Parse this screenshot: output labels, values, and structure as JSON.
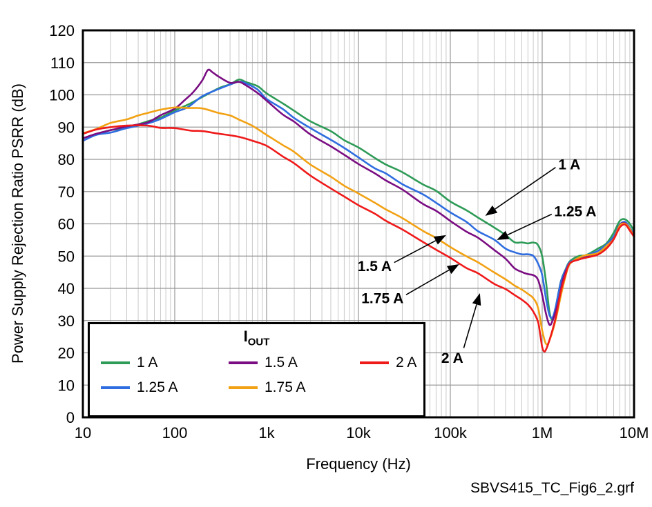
{
  "figure": {
    "caption": "SBVS415_TC_Fig6_2.grf"
  },
  "chart_data": {
    "type": "line",
    "title": "",
    "xlabel": "Frequency (Hz)",
    "ylabel": "Power Supply Rejection Ratio PSRR (dB)",
    "x_scale": "log",
    "xlim": [
      10,
      10000000
    ],
    "ylim": [
      0,
      120
    ],
    "grid": {
      "major": true,
      "minor_x": true
    },
    "x_ticks": [
      {
        "v": 10,
        "label": "10"
      },
      {
        "v": 100,
        "label": "100"
      },
      {
        "v": 1000,
        "label": "1k"
      },
      {
        "v": 10000,
        "label": "10k"
      },
      {
        "v": 100000,
        "label": "100k"
      },
      {
        "v": 1000000,
        "label": "1M"
      },
      {
        "v": 10000000,
        "label": "10M"
      }
    ],
    "y_ticks": {
      "min": 0,
      "max": 120,
      "step": 10
    },
    "legend": {
      "title_main": "I",
      "title_sub": "OUT",
      "position": "bottom-left",
      "order": [
        0,
        2,
        4,
        1,
        3
      ]
    },
    "series": [
      {
        "name": "1 A",
        "color": "#2e9b57",
        "points": [
          [
            10,
            86.5
          ],
          [
            14,
            88
          ],
          [
            20,
            89
          ],
          [
            30,
            90
          ],
          [
            50,
            91.5
          ],
          [
            70,
            93
          ],
          [
            100,
            95
          ],
          [
            140,
            97
          ],
          [
            200,
            99.5
          ],
          [
            300,
            102
          ],
          [
            400,
            103.5
          ],
          [
            500,
            104.5
          ],
          [
            600,
            104
          ],
          [
            800,
            102.5
          ],
          [
            1000,
            100.5
          ],
          [
            1500,
            97.5
          ],
          [
            2000,
            95
          ],
          [
            3000,
            92
          ],
          [
            5000,
            88.5
          ],
          [
            7000,
            86
          ],
          [
            10000,
            83.5
          ],
          [
            15000,
            80.5
          ],
          [
            20000,
            78.5
          ],
          [
            30000,
            76
          ],
          [
            50000,
            72.5
          ],
          [
            70000,
            70
          ],
          [
            100000,
            67
          ],
          [
            150000,
            64
          ],
          [
            200000,
            62
          ],
          [
            300000,
            59
          ],
          [
            400000,
            56.5
          ],
          [
            500000,
            54.5
          ],
          [
            600000,
            54
          ],
          [
            700000,
            54
          ],
          [
            800000,
            54
          ],
          [
            900000,
            53.5
          ],
          [
            1000000,
            50
          ],
          [
            1100000,
            42
          ],
          [
            1200000,
            33
          ],
          [
            1300000,
            30
          ],
          [
            1400000,
            34
          ],
          [
            1600000,
            42
          ],
          [
            1800000,
            46
          ],
          [
            2000000,
            48.5
          ],
          [
            2500000,
            50
          ],
          [
            3000000,
            50.5
          ],
          [
            4000000,
            52
          ],
          [
            5000000,
            54
          ],
          [
            6000000,
            57
          ],
          [
            7000000,
            61
          ],
          [
            8000000,
            61.5
          ],
          [
            9000000,
            60
          ],
          [
            10000000,
            58
          ]
        ]
      },
      {
        "name": "1.25 A",
        "color": "#2f6de0",
        "points": [
          [
            10,
            86
          ],
          [
            14,
            87.5
          ],
          [
            20,
            88.5
          ],
          [
            30,
            89.5
          ],
          [
            50,
            91
          ],
          [
            70,
            92.5
          ],
          [
            100,
            94.5
          ],
          [
            140,
            96.5
          ],
          [
            200,
            99.5
          ],
          [
            300,
            102
          ],
          [
            400,
            103
          ],
          [
            500,
            104
          ],
          [
            600,
            103.5
          ],
          [
            800,
            101.5
          ],
          [
            1000,
            99
          ],
          [
            1500,
            95.5
          ],
          [
            2000,
            93
          ],
          [
            3000,
            89.5
          ],
          [
            5000,
            86
          ],
          [
            7000,
            83.5
          ],
          [
            10000,
            80.5
          ],
          [
            15000,
            77.5
          ],
          [
            20000,
            75.5
          ],
          [
            30000,
            72.5
          ],
          [
            50000,
            69
          ],
          [
            70000,
            66.5
          ],
          [
            100000,
            63.5
          ],
          [
            150000,
            60.5
          ],
          [
            200000,
            58
          ],
          [
            300000,
            55
          ],
          [
            400000,
            52.5
          ],
          [
            500000,
            51
          ],
          [
            600000,
            50.5
          ],
          [
            700000,
            50.5
          ],
          [
            800000,
            50
          ],
          [
            900000,
            48
          ],
          [
            1000000,
            44
          ],
          [
            1100000,
            37
          ],
          [
            1200000,
            31.5
          ],
          [
            1300000,
            31
          ],
          [
            1400000,
            34
          ],
          [
            1600000,
            42
          ],
          [
            1800000,
            46
          ],
          [
            2000000,
            48
          ],
          [
            2500000,
            49.5
          ],
          [
            3000000,
            50
          ],
          [
            4000000,
            51.5
          ],
          [
            5000000,
            53.5
          ],
          [
            6000000,
            56
          ],
          [
            7000000,
            60
          ],
          [
            8000000,
            60.5
          ],
          [
            9000000,
            59
          ],
          [
            10000000,
            56.5
          ]
        ]
      },
      {
        "name": "1.5 A",
        "color": "#7a0d82",
        "points": [
          [
            10,
            86.5
          ],
          [
            14,
            88
          ],
          [
            20,
            89
          ],
          [
            30,
            90
          ],
          [
            50,
            91.5
          ],
          [
            70,
            93.5
          ],
          [
            100,
            96
          ],
          [
            130,
            98.5
          ],
          [
            160,
            101
          ],
          [
            200,
            104.5
          ],
          [
            230,
            107.5
          ],
          [
            260,
            107
          ],
          [
            300,
            105.5
          ],
          [
            400,
            104
          ],
          [
            500,
            104
          ],
          [
            600,
            103
          ],
          [
            800,
            100.5
          ],
          [
            1000,
            98
          ],
          [
            1500,
            94
          ],
          [
            2000,
            91.5
          ],
          [
            3000,
            88
          ],
          [
            5000,
            84
          ],
          [
            7000,
            81.5
          ],
          [
            10000,
            78.5
          ],
          [
            15000,
            75.5
          ],
          [
            20000,
            73.5
          ],
          [
            30000,
            70.5
          ],
          [
            50000,
            66.5
          ],
          [
            70000,
            64
          ],
          [
            100000,
            61
          ],
          [
            150000,
            57.5
          ],
          [
            200000,
            55.5
          ],
          [
            300000,
            52
          ],
          [
            400000,
            49
          ],
          [
            500000,
            46.5
          ],
          [
            600000,
            45
          ],
          [
            700000,
            44.5
          ],
          [
            800000,
            44
          ],
          [
            900000,
            42.5
          ],
          [
            1000000,
            38
          ],
          [
            1100000,
            32
          ],
          [
            1200000,
            29
          ],
          [
            1300000,
            30
          ],
          [
            1500000,
            36
          ],
          [
            1700000,
            43
          ],
          [
            2000000,
            47.5
          ],
          [
            2500000,
            49
          ],
          [
            3000000,
            49.5
          ],
          [
            4000000,
            51
          ],
          [
            5000000,
            53
          ],
          [
            6000000,
            55.5
          ],
          [
            7000000,
            59.5
          ],
          [
            8000000,
            60
          ],
          [
            9000000,
            58.5
          ],
          [
            10000000,
            56
          ]
        ]
      },
      {
        "name": "1.75 A",
        "color": "#f2a113",
        "points": [
          [
            10,
            88
          ],
          [
            14,
            89.5
          ],
          [
            20,
            91
          ],
          [
            30,
            92.5
          ],
          [
            40,
            93.5
          ],
          [
            50,
            94.5
          ],
          [
            70,
            95.5
          ],
          [
            100,
            96
          ],
          [
            140,
            96
          ],
          [
            200,
            95.5
          ],
          [
            300,
            94.5
          ],
          [
            400,
            93.5
          ],
          [
            500,
            92.5
          ],
          [
            700,
            90.5
          ],
          [
            1000,
            87.5
          ],
          [
            1500,
            84.5
          ],
          [
            2000,
            82
          ],
          [
            3000,
            78.5
          ],
          [
            5000,
            74.5
          ],
          [
            7000,
            72
          ],
          [
            10000,
            69.5
          ],
          [
            15000,
            66.5
          ],
          [
            20000,
            64.5
          ],
          [
            30000,
            61.5
          ],
          [
            50000,
            58
          ],
          [
            70000,
            55.5
          ],
          [
            100000,
            53
          ],
          [
            150000,
            50
          ],
          [
            200000,
            48
          ],
          [
            300000,
            45
          ],
          [
            400000,
            42.5
          ],
          [
            500000,
            41
          ],
          [
            600000,
            39.5
          ],
          [
            700000,
            38.5
          ],
          [
            800000,
            37
          ],
          [
            900000,
            34
          ],
          [
            1000000,
            27
          ],
          [
            1100000,
            22.5
          ],
          [
            1200000,
            24
          ],
          [
            1400000,
            30
          ],
          [
            1600000,
            38
          ],
          [
            1800000,
            44
          ],
          [
            2000000,
            47.5
          ],
          [
            2500000,
            49.5
          ],
          [
            3000000,
            50
          ],
          [
            4000000,
            51
          ],
          [
            5000000,
            53
          ],
          [
            6000000,
            55.5
          ],
          [
            7000000,
            59.5
          ],
          [
            8000000,
            60
          ],
          [
            9000000,
            58.5
          ],
          [
            10000000,
            55.5
          ]
        ]
      },
      {
        "name": "2 A",
        "color": "#ef1a1a",
        "points": [
          [
            10,
            88
          ],
          [
            14,
            89
          ],
          [
            20,
            90
          ],
          [
            30,
            90.5
          ],
          [
            50,
            90.5
          ],
          [
            70,
            90
          ],
          [
            100,
            89.5
          ],
          [
            150,
            89
          ],
          [
            200,
            88.5
          ],
          [
            300,
            88
          ],
          [
            400,
            87.5
          ],
          [
            500,
            87
          ],
          [
            700,
            86
          ],
          [
            1000,
            84
          ],
          [
            1500,
            81
          ],
          [
            2000,
            78.5
          ],
          [
            3000,
            75
          ],
          [
            5000,
            71
          ],
          [
            7000,
            68.5
          ],
          [
            10000,
            66
          ],
          [
            15000,
            63
          ],
          [
            20000,
            61
          ],
          [
            30000,
            58
          ],
          [
            50000,
            54.5
          ],
          [
            70000,
            52
          ],
          [
            100000,
            49.5
          ],
          [
            150000,
            46.5
          ],
          [
            200000,
            44.5
          ],
          [
            300000,
            41.5
          ],
          [
            400000,
            39.5
          ],
          [
            500000,
            38
          ],
          [
            600000,
            36.5
          ],
          [
            700000,
            35
          ],
          [
            800000,
            33
          ],
          [
            900000,
            29.5
          ],
          [
            950000,
            26
          ],
          [
            1000000,
            21.5
          ],
          [
            1050000,
            20.5
          ],
          [
            1100000,
            21
          ],
          [
            1200000,
            24
          ],
          [
            1400000,
            31
          ],
          [
            1600000,
            39
          ],
          [
            1800000,
            44.5
          ],
          [
            2000000,
            47.5
          ],
          [
            2500000,
            49
          ],
          [
            3000000,
            49.5
          ],
          [
            4000000,
            50.5
          ],
          [
            5000000,
            52.5
          ],
          [
            6000000,
            55
          ],
          [
            7000000,
            59
          ],
          [
            8000000,
            59.5
          ],
          [
            9000000,
            58
          ],
          [
            10000000,
            56
          ]
        ]
      }
    ],
    "annotations": [
      {
        "label": "1 A",
        "text_at": [
          1500000,
          78.5
        ],
        "anchor": "start",
        "line": {
          "from": [
            1400000,
            77.5
          ],
          "to": [
            240000,
            62.5
          ]
        }
      },
      {
        "label": "1.25 A",
        "text_at": [
          1350000,
          64
        ],
        "anchor": "start",
        "line": {
          "from": [
            1270000,
            63
          ],
          "to": [
            320000,
            55
          ]
        }
      },
      {
        "label": "1.5 A",
        "text_at": [
          23000,
          47
        ],
        "anchor": "end",
        "line": {
          "from": [
            24500,
            48
          ],
          "to": [
            90000,
            56.5
          ]
        }
      },
      {
        "label": "1.75 A",
        "text_at": [
          31000,
          37
        ],
        "anchor": "end",
        "line": {
          "from": [
            33000,
            38
          ],
          "to": [
            125000,
            47.5
          ]
        }
      },
      {
        "label": "2 A",
        "text_at": [
          105000,
          18.5
        ],
        "anchor": "middle",
        "line": {
          "from": [
            140000,
            21.5
          ],
          "to": [
            210000,
            38.5
          ]
        }
      }
    ]
  }
}
